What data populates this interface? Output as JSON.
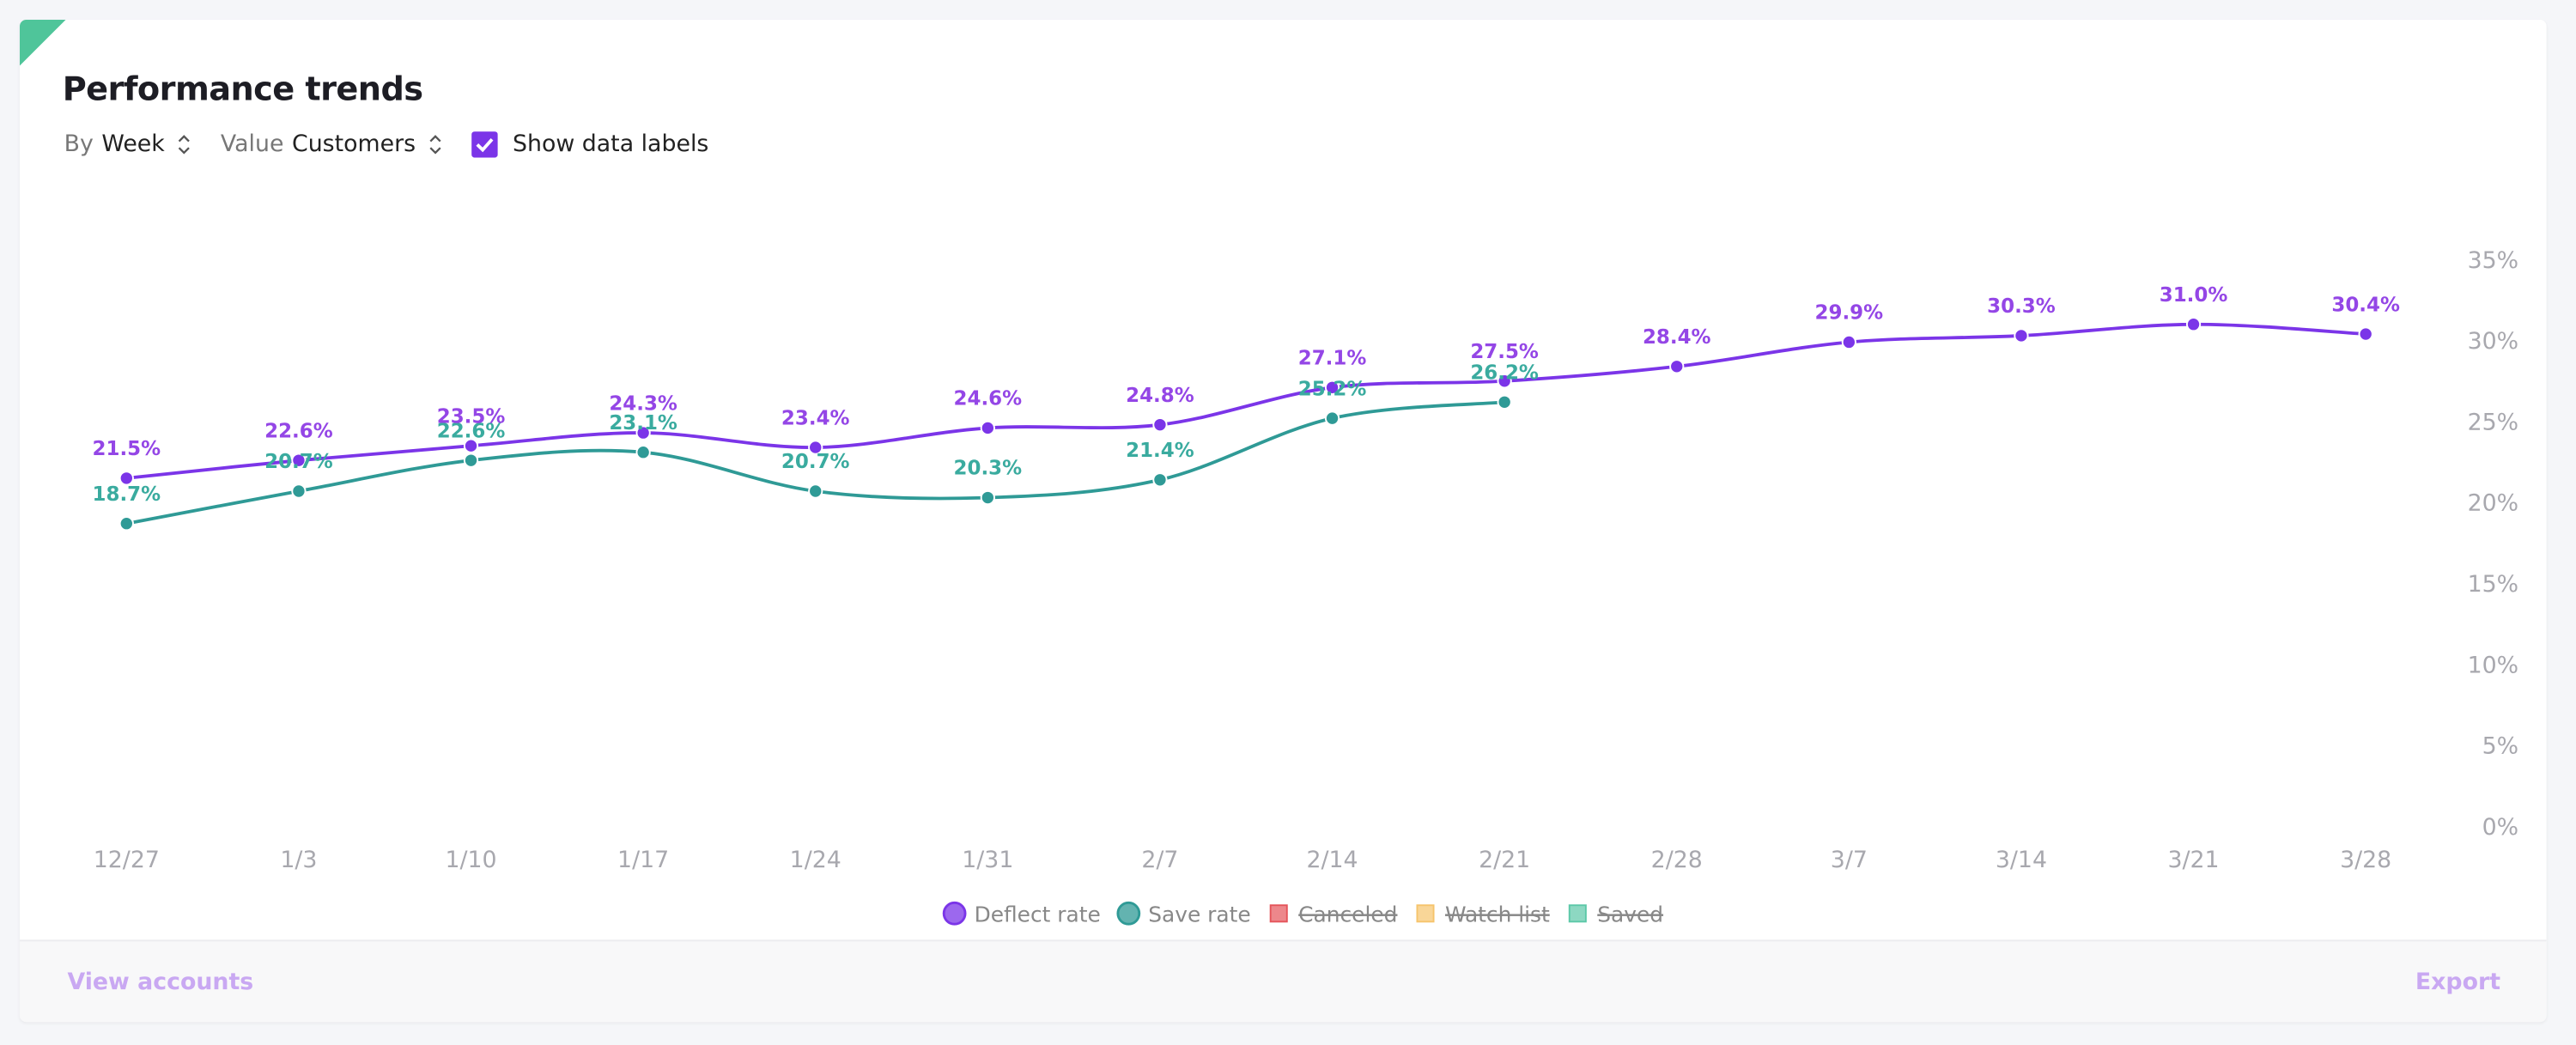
{
  "header": {
    "title": "Performance trends"
  },
  "controls": {
    "group_label": "By",
    "group_value": "Week",
    "value_label": "Value",
    "value_value": "Customers",
    "checkbox_label": "Show data labels"
  },
  "footer": {
    "left_link": "View accounts",
    "right_link": "Export"
  },
  "chart_data": {
    "type": "line",
    "categories": [
      "12/27",
      "1/3",
      "1/10",
      "1/17",
      "1/24",
      "1/31",
      "2/7",
      "2/14",
      "2/21",
      "2/28",
      "3/7",
      "3/14",
      "3/21",
      "3/28"
    ],
    "series": [
      {
        "name": "Deflect rate",
        "color": "#7b35e8",
        "label_color": "#9446e6",
        "values": [
          21.5,
          22.6,
          23.5,
          24.3,
          23.4,
          24.6,
          24.8,
          27.1,
          27.5,
          28.4,
          29.9,
          30.3,
          31.0,
          30.4
        ],
        "value_labels": [
          "21.5%",
          "22.6%",
          "23.5%",
          "24.3%",
          "23.4%",
          "24.6%",
          "24.8%",
          "27.1%",
          "27.5%",
          "28.4%",
          "29.9%",
          "30.3%",
          "31.0%",
          "30.4%"
        ]
      },
      {
        "name": "Save rate",
        "color": "#2f9a96",
        "label_color": "#3aab9f",
        "values": [
          18.7,
          20.7,
          22.6,
          23.1,
          20.7,
          20.3,
          21.4,
          25.2,
          26.2,
          null,
          null,
          null,
          null,
          null
        ],
        "value_labels": [
          "18.7%",
          "20.7%",
          "22.6%",
          "23.1%",
          "20.7%",
          "20.3%",
          "21.4%",
          "25.2%",
          "26.2%",
          null,
          null,
          null,
          null,
          null
        ]
      }
    ],
    "hidden_series": [
      {
        "name": "Canceled",
        "color": "#e5545a"
      },
      {
        "name": "Watch list",
        "color": "#f6c46c"
      },
      {
        "name": "Saved",
        "color": "#5cc8a8"
      }
    ],
    "ylim": [
      0,
      35
    ],
    "yticks": [
      {
        "value": 0,
        "label": "0%"
      },
      {
        "value": 5,
        "label": "5%"
      },
      {
        "value": 10,
        "label": "10%"
      },
      {
        "value": 15,
        "label": "15%"
      },
      {
        "value": 20,
        "label": "20%"
      },
      {
        "value": 25,
        "label": "25%"
      },
      {
        "value": 30,
        "label": "30%"
      },
      {
        "value": 35,
        "label": "35%"
      }
    ],
    "yaxis_side": "right",
    "grid": false,
    "legend": "bottom",
    "show_data_labels": true
  }
}
